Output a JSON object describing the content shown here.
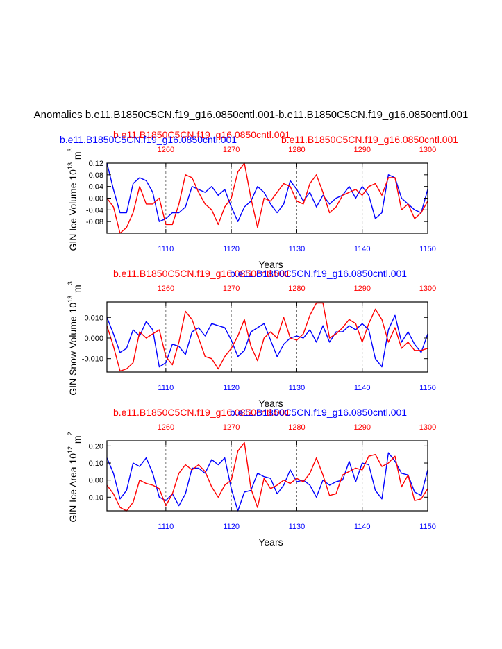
{
  "page": {
    "main_title": "Anomalies b.e11.B1850C5CN.f19_g16.0850cntl.001-b.e11.B1850C5CN.f19_g16.0850cntl.001"
  },
  "colors": {
    "case1": "#0000ff",
    "case2": "#ff0000",
    "axis": "#000000",
    "grid": "#555555"
  },
  "chart_data": [
    {
      "type": "line",
      "top_labels": {
        "red_left": "b.e11.B1850C5CN.f19_g16.0850cntl.001",
        "blue": "b.e11.B1850C5CN.f19_g16.0850cntl.001",
        "red_right": "b.e11.B1850C5CN.f19_g16.0850cntl.001"
      },
      "ylabel": "GIN Ice Volume 10",
      "ylabel_exp": "13",
      "ylabel_unit": "m",
      "ylabel_unit_exp": "3",
      "xlabel": "Years",
      "ylim": [
        -0.12,
        0.12
      ],
      "yticks": [
        0.12,
        0.08,
        0.04,
        0.0,
        -0.04,
        -0.08
      ],
      "ytick_labels": [
        "0.12",
        "0.08",
        "0.04",
        "0.00",
        "-0.04",
        "-0.08"
      ],
      "bottom_xlim": [
        1101,
        1150
      ],
      "bottom_xticks": [
        1110,
        1120,
        1130,
        1140,
        1150
      ],
      "top_xlim": [
        1251,
        1300
      ],
      "top_xticks": [
        1260,
        1270,
        1280,
        1290,
        1300
      ],
      "series": [
        {
          "name": "b.e11.B1850C5CN.f19_g16.0850cntl.001",
          "axis": "bottom",
          "color": "#0000ff",
          "x_start": 1101,
          "values": [
            0.12,
            0.03,
            -0.05,
            -0.05,
            0.05,
            0.07,
            0.06,
            0.02,
            -0.08,
            -0.07,
            -0.05,
            -0.05,
            -0.03,
            0.04,
            0.03,
            0.02,
            0.04,
            0.01,
            0.03,
            -0.03,
            -0.08,
            -0.03,
            -0.01,
            0.04,
            0.02,
            -0.02,
            -0.05,
            -0.02,
            0.06,
            0.03,
            -0.01,
            0.02,
            -0.03,
            0.01,
            -0.02,
            0.0,
            0.01,
            0.04,
            0.0,
            0.04,
            0.01,
            -0.07,
            -0.05,
            0.08,
            0.07,
            0.0,
            -0.02,
            -0.04,
            -0.05,
            0.03
          ]
        },
        {
          "name": "b.e11.B1850C5CN.f19_g16.0850cntl.001",
          "axis": "top",
          "color": "#ff0000",
          "x_start": 1251,
          "values": [
            0.0,
            -0.03,
            -0.12,
            -0.1,
            -0.05,
            0.04,
            -0.02,
            -0.02,
            0.0,
            -0.09,
            -0.09,
            -0.02,
            0.08,
            0.07,
            0.02,
            -0.02,
            -0.04,
            -0.09,
            -0.03,
            0.0,
            0.09,
            0.12,
            0.0,
            -0.1,
            0.0,
            -0.01,
            0.02,
            0.05,
            0.04,
            -0.01,
            -0.02,
            0.05,
            0.08,
            0.02,
            -0.05,
            -0.03,
            0.01,
            0.02,
            0.03,
            0.01,
            0.04,
            0.05,
            0.01,
            0.07,
            0.07,
            -0.04,
            -0.02,
            -0.07,
            -0.05,
            -0.01
          ]
        }
      ]
    },
    {
      "type": "line",
      "top_labels": {
        "red_left": "b.e11.B1850C5CN.f19_g16.0850cntl.001",
        "blue": "b.e11.B1850C5CN.f19_g16.0850cntl.001",
        "red_right": ""
      },
      "ylabel": "GIN Snow Volume 10",
      "ylabel_exp": "13",
      "ylabel_unit": "m",
      "ylabel_unit_exp": "3",
      "xlabel": "Years",
      "ylim": [
        -0.0165,
        0.0175
      ],
      "yticks": [
        0.01,
        0.0,
        -0.01
      ],
      "ytick_labels": [
        "0.010",
        "0.000",
        "-0.010"
      ],
      "bottom_xlim": [
        1101,
        1150
      ],
      "bottom_xticks": [
        1110,
        1120,
        1130,
        1140,
        1150
      ],
      "top_xlim": [
        1251,
        1300
      ],
      "top_xticks": [
        1260,
        1270,
        1280,
        1290,
        1300
      ],
      "series": [
        {
          "name": "b.e11.B1850C5CN.f19_g16.0850cntl.001",
          "axis": "bottom",
          "color": "#0000ff",
          "x_start": 1101,
          "values": [
            0.01,
            0.002,
            -0.007,
            -0.005,
            0.004,
            0.001,
            0.008,
            0.004,
            -0.014,
            -0.012,
            -0.003,
            -0.004,
            -0.008,
            0.003,
            0.005,
            0.001,
            0.007,
            0.006,
            0.005,
            -0.001,
            -0.009,
            -0.006,
            0.003,
            0.005,
            0.007,
            -0.001,
            -0.009,
            -0.003,
            0.0,
            0.001,
            0.0,
            0.004,
            -0.002,
            0.006,
            -0.002,
            0.003,
            0.003,
            0.006,
            0.004,
            0.007,
            0.004,
            -0.01,
            -0.014,
            0.004,
            0.011,
            -0.002,
            0.003,
            -0.003,
            -0.007,
            0.002
          ]
        },
        {
          "name": "b.e11.B1850C5CN.f19_g16.0850cntl.001",
          "axis": "top",
          "color": "#ff0000",
          "x_start": 1251,
          "values": [
            0.006,
            -0.004,
            -0.016,
            -0.015,
            -0.012,
            0.003,
            0.0,
            0.002,
            0.004,
            -0.009,
            -0.013,
            -0.002,
            0.013,
            0.009,
            0.0,
            -0.009,
            -0.01,
            -0.015,
            -0.009,
            -0.005,
            0.001,
            0.009,
            -0.004,
            -0.011,
            0.0,
            0.003,
            0.0,
            0.01,
            0.0,
            -0.001,
            0.002,
            0.011,
            0.017,
            0.017,
            0.0,
            0.002,
            0.005,
            0.009,
            0.007,
            -0.002,
            0.007,
            0.014,
            0.009,
            -0.002,
            0.005,
            -0.005,
            -0.002,
            -0.006,
            -0.006,
            -0.005
          ]
        }
      ]
    },
    {
      "type": "line",
      "top_labels": {
        "red_left": "b.e11.B1850C5CN.f19_g16.0850cntl.001",
        "blue": "b.e11.B1850C5CN.f19_g16.0850cntl.001",
        "red_right": ""
      },
      "ylabel": "GIN Ice Area 10",
      "ylabel_exp": "12",
      "ylabel_unit": "m",
      "ylabel_unit_exp": "2",
      "xlabel": "Years",
      "ylim": [
        -0.18,
        0.23
      ],
      "yticks": [
        0.2,
        0.1,
        0.0,
        -0.1
      ],
      "ytick_labels": [
        "0.20",
        "0.10",
        "0.00",
        "-0.10"
      ],
      "bottom_xlim": [
        1101,
        1150
      ],
      "bottom_xticks": [
        1110,
        1120,
        1130,
        1140,
        1150
      ],
      "top_xlim": [
        1251,
        1300
      ],
      "top_xticks": [
        1260,
        1270,
        1280,
        1290,
        1300
      ],
      "series": [
        {
          "name": "b.e11.B1850C5CN.f19_g16.0850cntl.001",
          "axis": "bottom",
          "color": "#0000ff",
          "x_start": 1101,
          "values": [
            0.13,
            0.04,
            -0.11,
            -0.06,
            0.1,
            0.08,
            0.13,
            0.04,
            -0.1,
            -0.12,
            -0.08,
            -0.15,
            -0.08,
            0.07,
            0.07,
            0.04,
            0.12,
            0.09,
            0.13,
            -0.05,
            -0.18,
            -0.07,
            -0.06,
            0.04,
            0.02,
            0.01,
            -0.08,
            -0.03,
            0.06,
            -0.01,
            0.0,
            -0.03,
            -0.1,
            0.0,
            -0.03,
            -0.01,
            0.0,
            0.11,
            -0.01,
            0.1,
            0.09,
            -0.06,
            -0.11,
            0.16,
            0.11,
            0.04,
            0.03,
            -0.07,
            -0.09,
            0.06
          ]
        },
        {
          "name": "b.e11.B1850C5CN.f19_g16.0850cntl.001",
          "axis": "top",
          "color": "#ff0000",
          "x_start": 1251,
          "values": [
            -0.03,
            -0.08,
            -0.16,
            -0.18,
            -0.13,
            0.0,
            -0.02,
            -0.03,
            -0.05,
            -0.15,
            -0.08,
            0.04,
            0.09,
            0.06,
            0.09,
            0.05,
            -0.04,
            -0.1,
            -0.03,
            0.0,
            0.17,
            0.22,
            -0.05,
            -0.16,
            0.01,
            -0.05,
            -0.03,
            0.0,
            -0.02,
            0.01,
            -0.01,
            0.04,
            0.13,
            0.03,
            -0.09,
            -0.08,
            0.03,
            0.05,
            0.07,
            0.06,
            0.14,
            0.15,
            0.08,
            0.1,
            0.14,
            -0.04,
            0.03,
            -0.12,
            -0.11,
            -0.05
          ]
        }
      ]
    }
  ]
}
